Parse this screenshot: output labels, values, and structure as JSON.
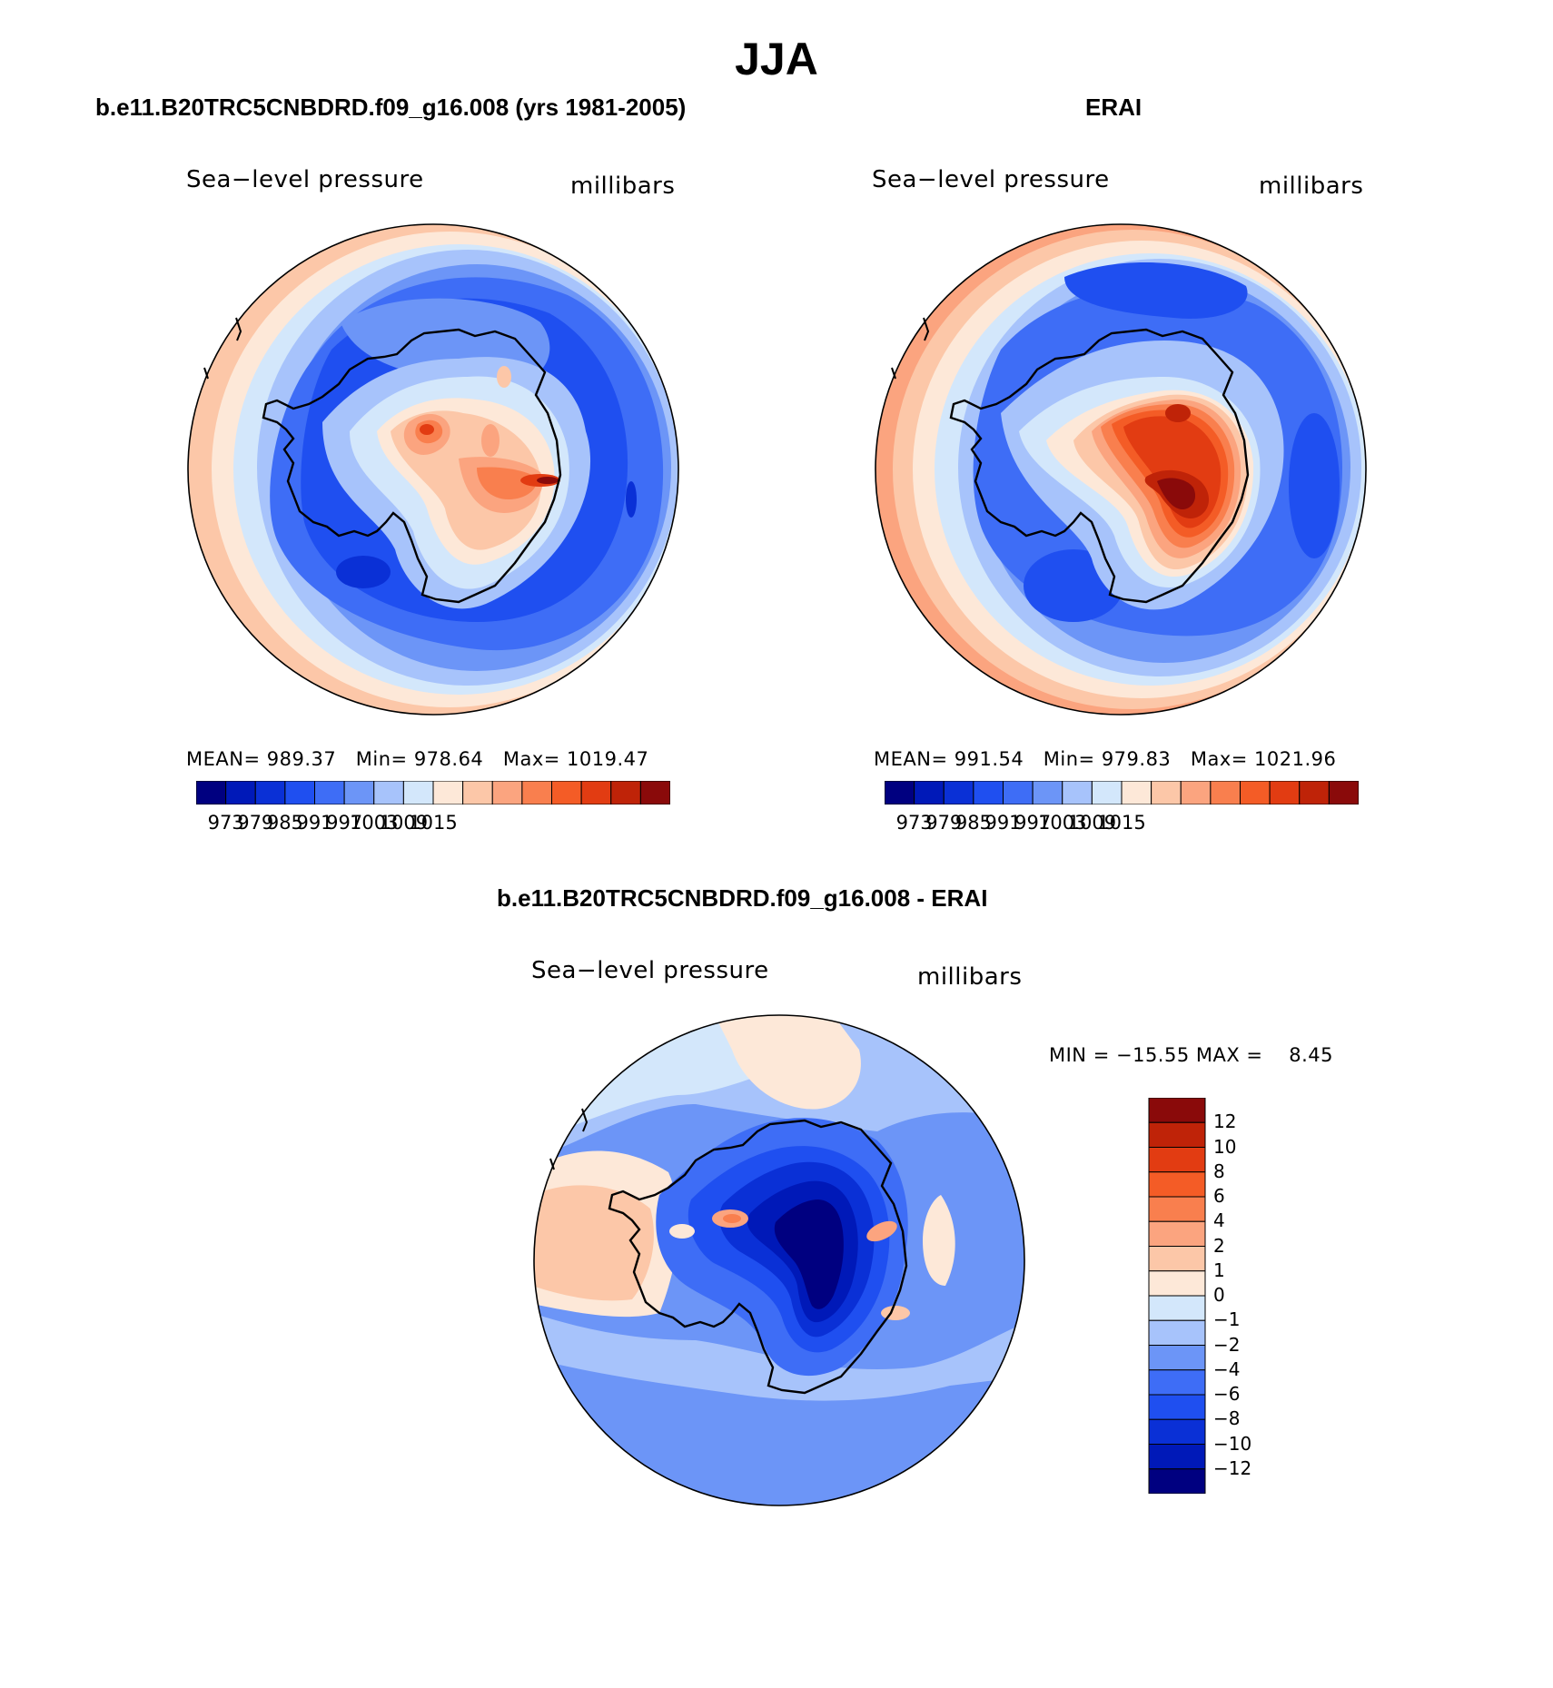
{
  "title": "JJA",
  "panels": [
    {
      "id": "model",
      "title": "b.e11.B20TRC5CNBDRD.f09_g16.008 (yrs 1981-2005)",
      "variable": "Sea−level pressure",
      "units": "millibars",
      "stats": {
        "mean_label": "MEAN=",
        "mean": "989.37",
        "min_label": "Min=",
        "min": "978.64",
        "max_label": "Max=",
        "max": "1019.47"
      },
      "colorbar_ticks": [
        "973",
        "979",
        "985",
        "991",
        "997",
        "1003",
        "1009",
        "1015"
      ]
    },
    {
      "id": "obs",
      "title": "ERAI",
      "variable": "Sea−level pressure",
      "units": "millibars",
      "stats": {
        "mean_label": "MEAN=",
        "mean": "991.54",
        "min_label": "Min=",
        "min": "979.83",
        "max_label": "Max=",
        "max": "1021.96"
      },
      "colorbar_ticks": [
        "973",
        "979",
        "985",
        "991",
        "997",
        "1003",
        "1009",
        "1015"
      ]
    }
  ],
  "difference": {
    "title": "b.e11.B20TRC5CNBDRD.f09_g16.008 - ERAI",
    "variable": "Sea−level pressure",
    "units": "millibars",
    "minmax": {
      "min_label": "MIN =",
      "min": "−15.55",
      "max_label": "MAX =",
      "max": "8.45"
    },
    "colorbar_ticks": [
      "12",
      "10",
      "8",
      "6",
      "4",
      "2",
      "1",
      "0",
      "−1",
      "−2",
      "−4",
      "−6",
      "−8",
      "−10",
      "−12"
    ]
  },
  "colors": {
    "slp_scale": [
      "#000080",
      "#0019b8",
      "#0a30d6",
      "#1f4ff0",
      "#3e6df6",
      "#6c95f7",
      "#a7c3fb",
      "#d3e7fb",
      "#fde8d8",
      "#fcc7a8",
      "#fba47f",
      "#f97f4e",
      "#f45c26",
      "#e23c12",
      "#bf2308",
      "#8a0a0a"
    ],
    "diff_scale": [
      "#8a0a0a",
      "#bf2308",
      "#e23c12",
      "#f45c26",
      "#f97f4e",
      "#fba47f",
      "#fcc7a8",
      "#fde8d8",
      "#d3e7fb",
      "#a7c3fb",
      "#6c95f7",
      "#3e6df6",
      "#1f4ff0",
      "#0a30d6",
      "#0019b8",
      "#000080"
    ],
    "coastline": "#000000"
  }
}
